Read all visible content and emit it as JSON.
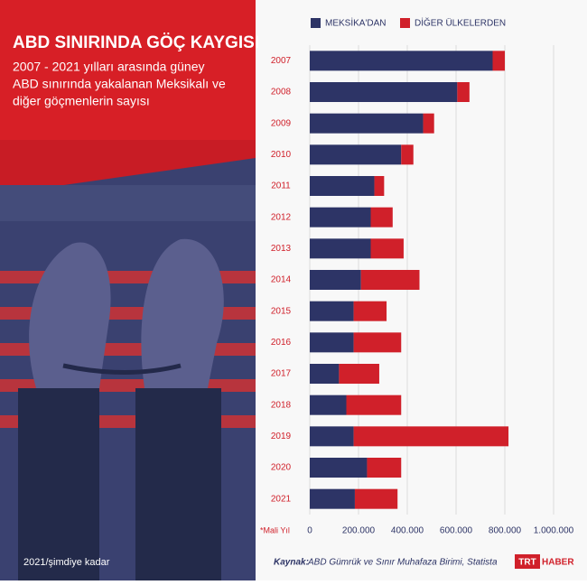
{
  "chart_data": {
    "type": "bar",
    "orientation": "horizontal",
    "stacked": true,
    "title": "ABD SINIRINDA GÖÇ KAYGISI",
    "subtitle": [
      "2007 - 2021 yılları arasında güney",
      "ABD sınırında yakalanan Meksikalı ve",
      "diğer göçmenlerin sayısı"
    ],
    "period_note": "2021/şimdiye kadar",
    "axis_note": "*Mali Yıl",
    "source_label": "Kaynak:",
    "source_text": "ABD Gümrük ve Sınır Muhafaza Birimi, Statista",
    "logo_parts": [
      "TRT",
      "HABER"
    ],
    "categories": [
      "2007",
      "2008",
      "2009",
      "2010",
      "2011",
      "2012",
      "2013",
      "2014",
      "2015",
      "2016",
      "2017",
      "2018",
      "2019",
      "2020",
      "2021"
    ],
    "series": [
      {
        "name": "MEKSİKA'DAN",
        "color": "#2d3466",
        "values": [
          750000,
          605000,
          465000,
          375000,
          265000,
          250000,
          250000,
          210000,
          180000,
          180000,
          120000,
          150000,
          180000,
          235000,
          185000
        ]
      },
      {
        "name": "DİĞER ÜLKELERDEN",
        "color": "#d0202a",
        "values": [
          50000,
          50000,
          45000,
          50000,
          40000,
          90000,
          135000,
          240000,
          135000,
          195000,
          165000,
          225000,
          635000,
          140000,
          175000
        ]
      }
    ],
    "xlim": [
      0,
      1000000
    ],
    "xticks": [
      0,
      {
        "value": 200000,
        "label": "200.000"
      },
      {
        "value": 400000,
        "label": "400.000"
      },
      {
        "value": 600000,
        "label": "600.000"
      },
      {
        "value": 800000,
        "label": "800.000"
      },
      {
        "value": 1000000,
        "label": "1.000.000"
      }
    ],
    "grid": true
  }
}
